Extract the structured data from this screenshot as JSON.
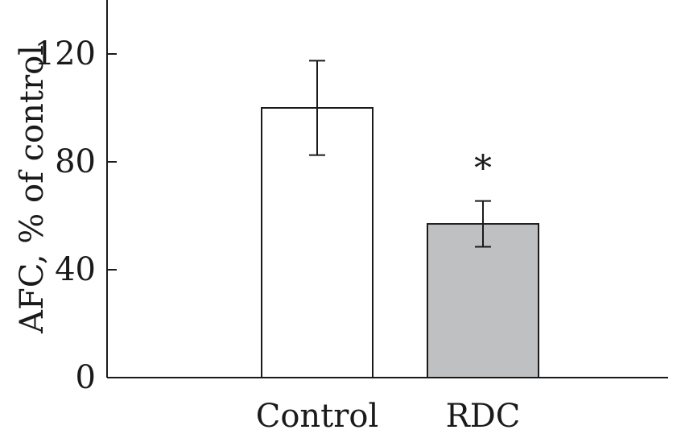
{
  "chart_data": {
    "type": "bar",
    "categories": [
      "Control",
      "RDC"
    ],
    "values": [
      100,
      57
    ],
    "errors": [
      17.5,
      8.5
    ],
    "bar_colors": [
      "#ffffff",
      "#bfc0c2"
    ],
    "ylabel": "AFC, % of control",
    "xlabel": "",
    "ylim": [
      0,
      140
    ],
    "yticks": [
      0,
      40,
      80,
      120
    ],
    "ytick_labels": [
      "0",
      "40",
      "80",
      "120"
    ],
    "annotations": [
      {
        "category": "RDC",
        "text": "*"
      }
    ],
    "grid": false,
    "legend": "none"
  }
}
